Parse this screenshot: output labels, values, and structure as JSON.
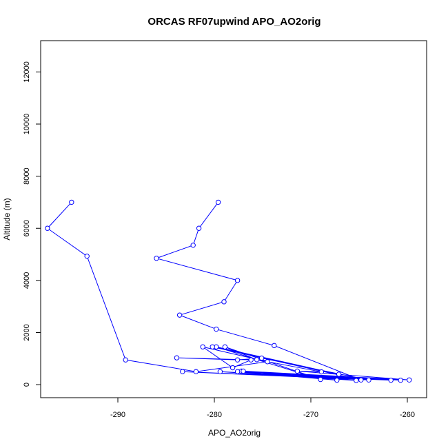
{
  "chart_data": {
    "type": "line",
    "title": "ORCAS RF07upwind APO_AO2orig",
    "xlabel": "APO_AO2orig",
    "ylabel": "Altitude (m)",
    "xlim": [
      -298,
      -258
    ],
    "ylim": [
      -500,
      13200
    ],
    "xticks": [
      -290,
      -280,
      -270,
      -260
    ],
    "yticks": [
      0,
      2000,
      4000,
      6000,
      8000,
      10000,
      12000
    ],
    "grid": false,
    "legend": "none",
    "color": "#0000ff",
    "marker": "open-circle",
    "series": [
      {
        "points": [
          [
            -294.8,
            7000
          ],
          [
            -297.3,
            6000
          ],
          [
            -293.2,
            4930
          ],
          [
            -289.2,
            950
          ],
          [
            -281.9,
            500
          ],
          [
            -274.5,
            880
          ],
          [
            -281.2,
            1450
          ],
          [
            -278.1,
            650
          ],
          [
            -276.2,
            950
          ],
          [
            -283.9,
            1030
          ],
          [
            -277.6,
            950
          ],
          [
            -275.1,
            1020
          ],
          [
            -264.0,
            180
          ],
          [
            -283.3,
            500
          ],
          [
            -261.7,
            170
          ],
          [
            -279.4,
            500
          ],
          [
            -265.3,
            160
          ],
          [
            -277.2,
            520
          ],
          [
            -260.7,
            170
          ],
          [
            -277.6,
            500
          ],
          [
            -267.3,
            170
          ],
          [
            -277.0,
            520
          ],
          [
            -259.8,
            180
          ],
          [
            -271.4,
            520
          ],
          [
            -268.9,
            490
          ],
          [
            -275.6,
            960
          ],
          [
            -278.9,
            1450
          ],
          [
            -269.0,
            200
          ],
          [
            -279.8,
            1450
          ],
          [
            -267.1,
            400
          ],
          [
            -280.2,
            1450
          ],
          [
            -264.8,
            180
          ],
          [
            -273.8,
            1500
          ],
          [
            -279.8,
            2130
          ],
          [
            -283.6,
            2670
          ],
          [
            -279.0,
            3180
          ],
          [
            -277.6,
            4000
          ],
          [
            -286.0,
            4850
          ],
          [
            -282.2,
            5350
          ],
          [
            -281.6,
            6000
          ],
          [
            -279.6,
            7000
          ]
        ]
      }
    ]
  }
}
